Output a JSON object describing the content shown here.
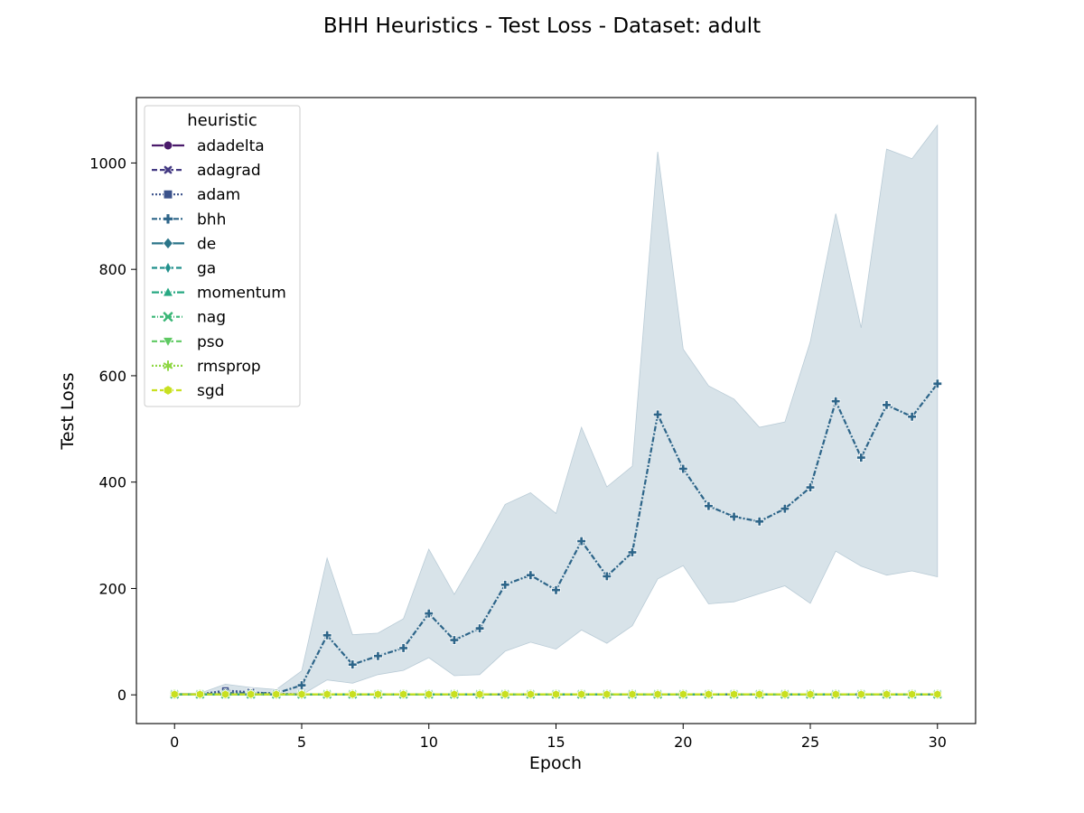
{
  "chart_data": {
    "type": "line",
    "title": "BHH Heuristics - Test Loss - Dataset: adult",
    "xlabel": "Epoch",
    "ylabel": "Test Loss",
    "xlim": [
      -1.5,
      31.5
    ],
    "ylim": [
      -54,
      1123
    ],
    "xticks": [
      0,
      5,
      10,
      15,
      20,
      25,
      30
    ],
    "yticks": [
      0,
      200,
      400,
      600,
      800,
      1000
    ],
    "grid": false,
    "legend": {
      "title": "heuristic",
      "position": "top-left"
    },
    "x": [
      0,
      1,
      2,
      3,
      4,
      5,
      6,
      7,
      8,
      9,
      10,
      11,
      12,
      13,
      14,
      15,
      16,
      17,
      18,
      19,
      20,
      21,
      22,
      23,
      24,
      25,
      26,
      27,
      28,
      29,
      30
    ],
    "band": {
      "series": "bhh",
      "color": "#d6e1e8",
      "lower": [
        0,
        0,
        0,
        0,
        0,
        0,
        28,
        22,
        38,
        46,
        70,
        36,
        38,
        82,
        99,
        86,
        122,
        97,
        130,
        218,
        243,
        171,
        175,
        190,
        205,
        172,
        270,
        242,
        225,
        233,
        222
      ],
      "upper": [
        3,
        3,
        20,
        14,
        10,
        45,
        257,
        113,
        116,
        143,
        274,
        189,
        271,
        358,
        380,
        341,
        503,
        391,
        430,
        1021,
        650,
        581,
        556,
        503,
        513,
        664,
        905,
        690,
        1026,
        1008,
        1071
      ]
    },
    "series": [
      {
        "name": "adadelta",
        "color": "#4a1a6b",
        "dash": "",
        "marker": "circle",
        "values": [
          1,
          1,
          1,
          1,
          1,
          1,
          1,
          1,
          1,
          1,
          1,
          1,
          1,
          1,
          1,
          1,
          1,
          1,
          1,
          1,
          1,
          1,
          1,
          1,
          1,
          1,
          1,
          1,
          1,
          1,
          1
        ]
      },
      {
        "name": "adagrad",
        "color": "#443a83",
        "dash": "6,3",
        "marker": "x-bold",
        "values": [
          1,
          1,
          1,
          1,
          1,
          1,
          1,
          1,
          1,
          1,
          1,
          1,
          1,
          1,
          1,
          1,
          1,
          1,
          1,
          1,
          1,
          1,
          1,
          1,
          1,
          1,
          1,
          1,
          1,
          1,
          1
        ]
      },
      {
        "name": "adam",
        "color": "#3b528b",
        "dash": "2,2",
        "marker": "square",
        "values": [
          1,
          1,
          8,
          5,
          2,
          1,
          1,
          1,
          1,
          1,
          1,
          1,
          1,
          1,
          1,
          1,
          1,
          1,
          1,
          1,
          1,
          1,
          1,
          1,
          1,
          1,
          1,
          1,
          1,
          1,
          1
        ]
      },
      {
        "name": "bhh",
        "color": "#2d6589",
        "dash": "6,2,2,2",
        "marker": "plus",
        "values": [
          1,
          1,
          3,
          3,
          3,
          18,
          112,
          57,
          73,
          88,
          153,
          103,
          125,
          207,
          225,
          197,
          289,
          223,
          268,
          527,
          425,
          355,
          335,
          326,
          350,
          390,
          552,
          446,
          545,
          523,
          585
        ]
      },
      {
        "name": "de",
        "color": "#2b7589",
        "dash": "",
        "marker": "diamond",
        "values": [
          1,
          1,
          1,
          1,
          1,
          1,
          1,
          1,
          1,
          1,
          1,
          1,
          1,
          1,
          1,
          1,
          1,
          1,
          1,
          1,
          1,
          1,
          1,
          1,
          1,
          1,
          1,
          1,
          1,
          1,
          1
        ]
      },
      {
        "name": "ga",
        "color": "#21908c",
        "dash": "6,3",
        "marker": "thin-diamond",
        "values": [
          1,
          1,
          1,
          1,
          1,
          1,
          1,
          1,
          1,
          1,
          1,
          1,
          1,
          1,
          1,
          1,
          1,
          1,
          1,
          1,
          1,
          1,
          1,
          1,
          1,
          1,
          1,
          1,
          1,
          1,
          1
        ]
      },
      {
        "name": "momentum",
        "color": "#27a882",
        "dash": "8,2,2,2",
        "marker": "triangle-up",
        "values": [
          1,
          1,
          1,
          1,
          1,
          1,
          1,
          1,
          1,
          1,
          1,
          1,
          1,
          1,
          1,
          1,
          1,
          1,
          1,
          1,
          1,
          1,
          1,
          1,
          1,
          1,
          1,
          1,
          1,
          1,
          1
        ]
      },
      {
        "name": "nag",
        "color": "#3ab676",
        "dash": "4,2,1,2",
        "marker": "x",
        "values": [
          1,
          1,
          1,
          1,
          1,
          1,
          1,
          1,
          1,
          1,
          1,
          1,
          1,
          1,
          1,
          1,
          1,
          1,
          1,
          1,
          1,
          1,
          1,
          1,
          1,
          1,
          1,
          1,
          1,
          1,
          1
        ]
      },
      {
        "name": "pso",
        "color": "#5ec962",
        "dash": "6,3",
        "marker": "triangle-down",
        "values": [
          1,
          1,
          1,
          1,
          1,
          1,
          1,
          1,
          1,
          1,
          1,
          1,
          1,
          1,
          1,
          1,
          1,
          1,
          1,
          1,
          1,
          1,
          1,
          1,
          1,
          1,
          1,
          1,
          1,
          1,
          1
        ]
      },
      {
        "name": "rmsprop",
        "color": "#8fd744",
        "dash": "2,2",
        "marker": "asterisk",
        "values": [
          1,
          1,
          1,
          1,
          1,
          1,
          1,
          1,
          1,
          1,
          1,
          1,
          1,
          1,
          1,
          1,
          1,
          1,
          1,
          1,
          1,
          1,
          1,
          1,
          1,
          1,
          1,
          1,
          1,
          1,
          1
        ]
      },
      {
        "name": "sgd",
        "color": "#c8e020",
        "dash": "6,3",
        "marker": "hexagon",
        "values": [
          1,
          1,
          1,
          1,
          1,
          1,
          1,
          1,
          1,
          1,
          1,
          1,
          1,
          1,
          1,
          1,
          1,
          1,
          1,
          1,
          1,
          1,
          1,
          1,
          1,
          1,
          1,
          1,
          1,
          1,
          1
        ]
      }
    ]
  }
}
